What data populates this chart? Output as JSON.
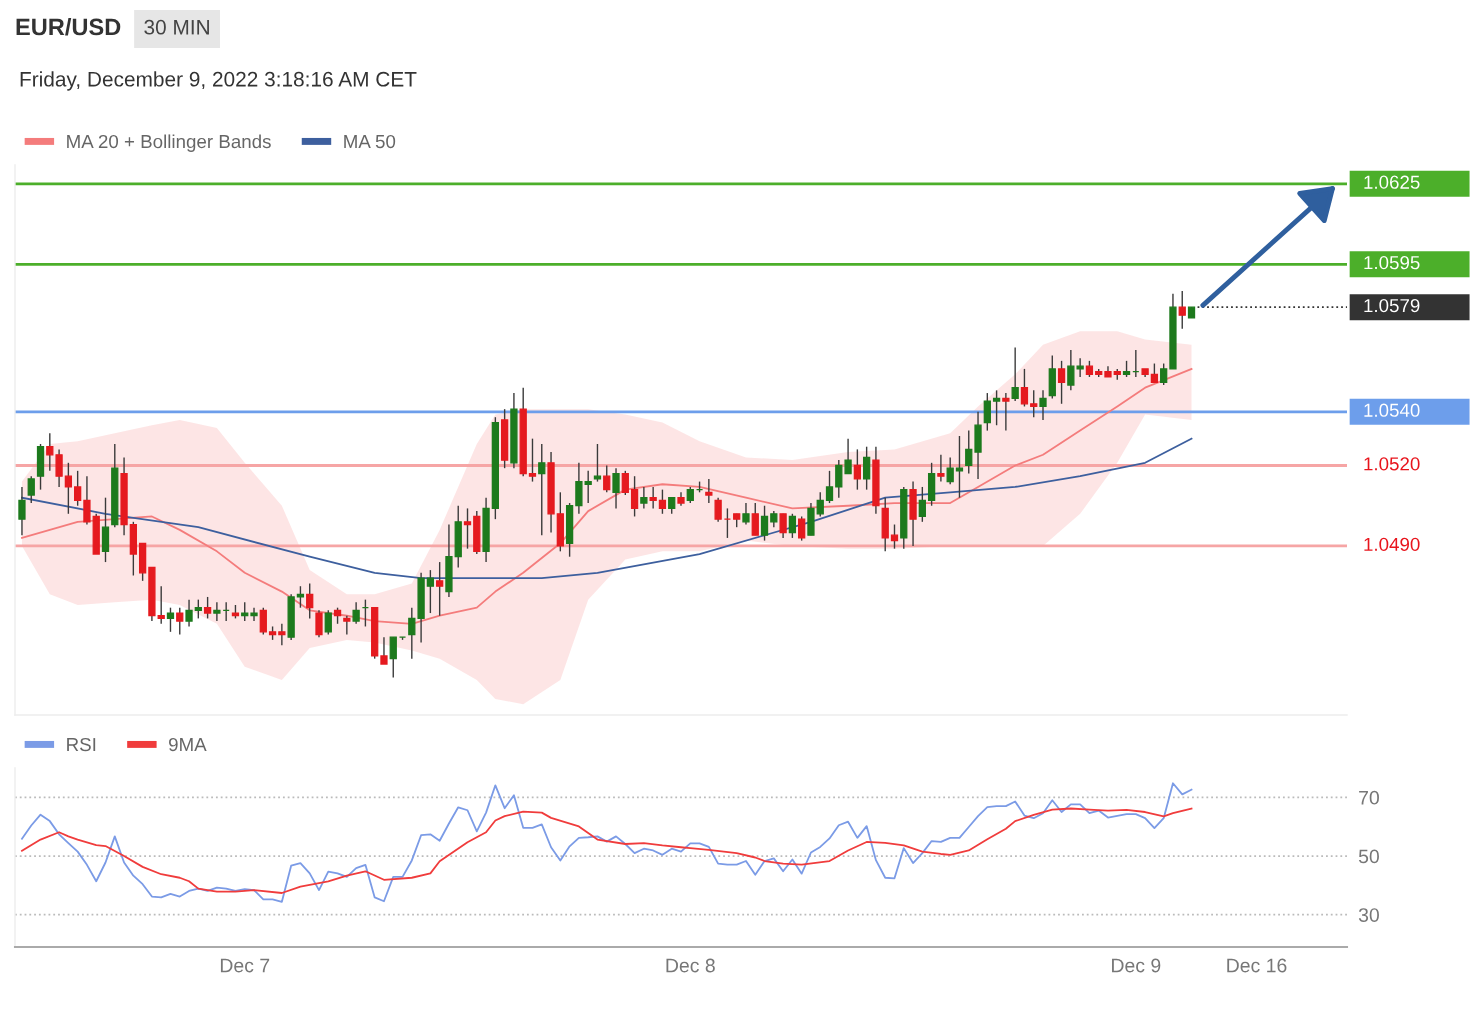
{
  "chart_data": [
    {
      "type": "candlestick",
      "title": "EUR/USD",
      "subtitle": "30 MIN",
      "annotations": [
        "Friday, December 9, 2022 3:18:16 AM CET"
      ],
      "categories": [
        null,
        null,
        null,
        null,
        null,
        null,
        null,
        null,
        null,
        null,
        null,
        null,
        null,
        null,
        null,
        null,
        null,
        null,
        null,
        null,
        null,
        null,
        null,
        null,
        null,
        null,
        null,
        null,
        null,
        null,
        null,
        null,
        null,
        null,
        null,
        null,
        null,
        null,
        null,
        null,
        null,
        null,
        null,
        null,
        null,
        null,
        null,
        null,
        null,
        null,
        null,
        null,
        null,
        null,
        null,
        null,
        null,
        null,
        null,
        null,
        null,
        null,
        null,
        null,
        null,
        null,
        null,
        null,
        null,
        null,
        null,
        null,
        null,
        null,
        null,
        null,
        null,
        null,
        null,
        null,
        null,
        null,
        null,
        null,
        null,
        null,
        null,
        null,
        null,
        null,
        null,
        null,
        null,
        null,
        null,
        null,
        null,
        null,
        null,
        null,
        null,
        null,
        null,
        null,
        null,
        null,
        null,
        null,
        null,
        null,
        null,
        null,
        null,
        null,
        null,
        null,
        null,
        null,
        null,
        null,
        null,
        null,
        null,
        null,
        null,
        null,
        null,
        null,
        null,
        null,
        null,
        null,
        null,
        null,
        null,
        null,
        null,
        null,
        null,
        null,
        null,
        null,
        null
      ],
      "ohlc": [
        [
          1.05,
          1.0512,
          1.0494,
          1.0507
        ],
        [
          1.0509,
          1.0516,
          1.0506,
          1.0515
        ],
        [
          1.0516,
          1.0528,
          1.0511,
          1.0527
        ],
        [
          1.0527,
          1.0532,
          1.0518,
          1.0524
        ],
        [
          1.0524,
          1.0526,
          1.0512,
          1.0516
        ],
        [
          1.0516,
          1.0521,
          1.0502,
          1.0512
        ],
        [
          1.0512,
          1.0518,
          1.0505,
          1.0507
        ],
        [
          1.0507,
          1.0516,
          1.0498,
          1.0499
        ],
        [
          1.0501,
          1.0502,
          1.0487,
          1.0487
        ],
        [
          1.0488,
          1.0508,
          1.0484,
          1.0497
        ],
        [
          1.0498,
          1.0528,
          1.0497,
          1.0519
        ],
        [
          1.0517,
          1.0523,
          1.0494,
          1.0498
        ],
        [
          1.0498,
          1.0499,
          1.0479,
          1.0487
        ],
        [
          1.0491,
          1.0491,
          1.0477,
          1.048
        ],
        [
          1.0482,
          1.0482,
          1.0462,
          1.0464
        ],
        [
          1.0464,
          1.0475,
          1.0461,
          1.0463
        ],
        [
          1.0463,
          1.0467,
          1.0458,
          1.0465
        ],
        [
          1.0465,
          1.0467,
          1.0457,
          1.0462
        ],
        [
          1.0462,
          1.047,
          1.046,
          1.0466
        ],
        [
          1.0466,
          1.047,
          1.0463,
          1.0467
        ],
        [
          1.0467,
          1.0471,
          1.0463,
          1.0465
        ],
        [
          1.0465,
          1.0469,
          1.0462,
          1.0466
        ],
        [
          1.0466,
          1.0469,
          1.0462,
          1.0466
        ],
        [
          1.0465,
          1.0468,
          1.0463,
          1.0464
        ],
        [
          1.0464,
          1.0469,
          1.0462,
          1.0465
        ],
        [
          1.0464,
          1.0467,
          1.0462,
          1.0465
        ],
        [
          1.0466,
          1.0467,
          1.0457,
          1.0458
        ],
        [
          1.0458,
          1.046,
          1.0455,
          1.0457
        ],
        [
          1.0458,
          1.0461,
          1.0453,
          1.0457
        ],
        [
          1.0456,
          1.0472,
          1.0455,
          1.0471
        ],
        [
          1.0471,
          1.0475,
          1.0467,
          1.0472
        ],
        [
          1.0472,
          1.0476,
          1.0463,
          1.0467
        ],
        [
          1.0465,
          1.0466,
          1.0456,
          1.0457
        ],
        [
          1.0458,
          1.0466,
          1.0457,
          1.0465
        ],
        [
          1.0466,
          1.0467,
          1.0461,
          1.0464
        ],
        [
          1.0463,
          1.0464,
          1.0457,
          1.0462
        ],
        [
          1.0462,
          1.0469,
          1.0461,
          1.0466
        ],
        [
          1.0467,
          1.047,
          1.046,
          1.0467
        ],
        [
          1.0467,
          1.0467,
          1.0448,
          1.0449
        ],
        [
          1.0449,
          1.0456,
          1.0446,
          1.0446
        ],
        [
          1.0448,
          1.0456,
          1.0441,
          1.0456
        ],
        [
          1.0456,
          1.0456,
          1.0455,
          1.0456
        ],
        [
          1.0457,
          1.0467,
          1.0448,
          1.0463
        ],
        [
          1.0463,
          1.048,
          1.0454,
          1.0478
        ],
        [
          1.0475,
          1.0481,
          1.0465,
          1.0478
        ],
        [
          1.0477,
          1.0484,
          1.0464,
          1.0475
        ],
        [
          1.0473,
          1.0498,
          1.0471,
          1.0486
        ],
        [
          1.0486,
          1.0505,
          1.0482,
          1.0499
        ],
        [
          1.0499,
          1.0504,
          1.0489,
          1.0498
        ],
        [
          1.0501,
          1.0503,
          1.0487,
          1.0488
        ],
        [
          1.0488,
          1.0508,
          1.0484,
          1.0504
        ],
        [
          1.0504,
          1.0538,
          1.05,
          1.0536
        ],
        [
          1.0537,
          1.0541,
          1.0519,
          1.0522
        ],
        [
          1.0521,
          1.0547,
          1.0519,
          1.0541
        ],
        [
          1.0541,
          1.0549,
          1.0516,
          1.0517
        ],
        [
          1.0517,
          1.053,
          1.0514,
          1.0516
        ],
        [
          1.0517,
          1.0528,
          1.0494,
          1.0521
        ],
        [
          1.0521,
          1.0525,
          1.0495,
          1.0502
        ],
        [
          1.0502,
          1.051,
          1.0488,
          1.049
        ],
        [
          1.0491,
          1.0506,
          1.0486,
          1.0505
        ],
        [
          1.0505,
          1.0521,
          1.0502,
          1.0514
        ],
        [
          1.0513,
          1.0518,
          1.0506,
          1.0514
        ],
        [
          1.0515,
          1.0528,
          1.0514,
          1.0516
        ],
        [
          1.0516,
          1.052,
          1.051,
          1.0511
        ],
        [
          1.051,
          1.0519,
          1.0504,
          1.0517
        ],
        [
          1.0517,
          1.0518,
          1.0509,
          1.051
        ],
        [
          1.0511,
          1.0516,
          1.0501,
          1.0504
        ],
        [
          1.0506,
          1.0512,
          1.0504,
          1.0508
        ],
        [
          1.0508,
          1.0512,
          1.0504,
          1.0507
        ],
        [
          1.0507,
          1.0511,
          1.0502,
          1.0504
        ],
        [
          1.0504,
          1.0508,
          1.0502,
          1.0508
        ],
        [
          1.0508,
          1.051,
          1.0505,
          1.0506
        ],
        [
          1.0507,
          1.0512,
          1.0506,
          1.0511
        ],
        [
          1.0511,
          1.0514,
          1.051,
          1.0511
        ],
        [
          1.051,
          1.0515,
          1.0506,
          1.0509
        ],
        [
          1.0507,
          1.0508,
          1.0499,
          1.05
        ],
        [
          1.05,
          1.0504,
          1.0493,
          1.05
        ],
        [
          1.0502,
          1.0502,
          1.0497,
          1.05
        ],
        [
          1.0499,
          1.0506,
          1.0498,
          1.0502
        ],
        [
          1.0502,
          1.0506,
          1.0494,
          1.0494
        ],
        [
          1.0494,
          1.0505,
          1.0492,
          1.0501
        ],
        [
          1.0499,
          1.0503,
          1.0497,
          1.0502
        ],
        [
          1.0502,
          1.0502,
          1.0493,
          1.0495
        ],
        [
          1.0495,
          1.0502,
          1.0493,
          1.0501
        ],
        [
          1.05,
          1.0501,
          1.0492,
          1.0493
        ],
        [
          1.0494,
          1.0506,
          1.0494,
          1.0504
        ],
        [
          1.0502,
          1.051,
          1.0501,
          1.0507
        ],
        [
          1.0507,
          1.0518,
          1.0506,
          1.0512
        ],
        [
          1.0512,
          1.0522,
          1.0508,
          1.052
        ],
        [
          1.0517,
          1.053,
          1.0517,
          1.0522
        ],
        [
          1.052,
          1.0526,
          1.0511,
          1.0515
        ],
        [
          1.0515,
          1.0527,
          1.0511,
          1.0523
        ],
        [
          1.0522,
          1.0527,
          1.0502,
          1.0505
        ],
        [
          1.0504,
          1.0508,
          1.0488,
          1.0493
        ],
        [
          1.0494,
          1.0498,
          1.0489,
          1.0492
        ],
        [
          1.0493,
          1.0512,
          1.0489,
          1.0511
        ],
        [
          1.0511,
          1.0514,
          1.049,
          1.05
        ],
        [
          1.0501,
          1.0512,
          1.0499,
          1.0507
        ],
        [
          1.0507,
          1.0521,
          1.0505,
          1.0517
        ],
        [
          1.0517,
          1.0524,
          1.0514,
          1.0516
        ],
        [
          1.0514,
          1.0523,
          1.0513,
          1.0519
        ],
        [
          1.0518,
          1.0531,
          1.0508,
          1.0519
        ],
        [
          1.052,
          1.0533,
          1.0517,
          1.0526
        ],
        [
          1.0525,
          1.054,
          1.0515,
          1.0535
        ],
        [
          1.0536,
          1.0547,
          1.0533,
          1.0544
        ],
        [
          1.0544,
          1.0548,
          1.0535,
          1.0545
        ],
        [
          1.0545,
          1.0547,
          1.0533,
          1.0544
        ],
        [
          1.0545,
          1.0564,
          1.0544,
          1.0549
        ],
        [
          1.0549,
          1.0556,
          1.0542,
          1.0543
        ],
        [
          1.0543,
          1.0548,
          1.0538,
          1.0542
        ],
        [
          1.0542,
          1.0548,
          1.0537,
          1.0545
        ],
        [
          1.0546,
          1.0561,
          1.0545,
          1.0556
        ],
        [
          1.0556,
          1.0559,
          1.0543,
          1.0551
        ],
        [
          1.055,
          1.0563,
          1.0548,
          1.0557
        ],
        [
          1.0556,
          1.056,
          1.0553,
          1.0557
        ],
        [
          1.0557,
          1.0559,
          1.0553,
          1.0554
        ],
        [
          1.0555,
          1.0556,
          1.0553,
          1.0554
        ],
        [
          1.0555,
          1.0557,
          1.0553,
          1.0553
        ],
        [
          1.0555,
          1.0556,
          1.0552,
          1.0554
        ],
        [
          1.0554,
          1.0559,
          1.0553,
          1.0555
        ],
        [
          1.0555,
          1.0563,
          1.0553,
          1.0555
        ],
        [
          1.0556,
          1.0556,
          1.0553,
          1.0554
        ],
        [
          1.0554,
          1.0558,
          1.0551,
          1.0551
        ],
        [
          1.0551,
          1.0558,
          1.055,
          1.0556
        ],
        [
          1.0556,
          1.0584,
          1.0556,
          1.0579
        ],
        [
          1.0579,
          1.0585,
          1.0571,
          1.0576
        ],
        [
          1.0575,
          1.0579,
          1.0575,
          1.0579
        ],
        null,
        null,
        null,
        null,
        null,
        null,
        null,
        null,
        null,
        null,
        null,
        null,
        null,
        null,
        null,
        null
      ],
      "colors": [
        "#1d7a1d",
        "#1d7a1d",
        "#1d7a1d",
        "#e51a1f",
        "#e51a1f",
        "#e51a1f",
        "#e51a1f",
        "#e51a1f",
        "#e51a1f",
        "#1d7a1d",
        "#1d7a1d",
        "#e51a1f",
        "#e51a1f",
        "#e51a1f",
        "#e51a1f",
        "#e51a1f",
        "#1d7a1d",
        "#e51a1f",
        "#1d7a1d",
        "#1d7a1d",
        "#e51a1f",
        "#1d7a1d",
        "#1d7a1d",
        "#e51a1f",
        "#1d7a1d",
        "#1d7a1d",
        "#e51a1f",
        "#e51a1f",
        "#e51a1f",
        "#1d7a1d",
        "#1d7a1d",
        "#e51a1f",
        "#e51a1f",
        "#1d7a1d",
        "#e51a1f",
        "#e51a1f",
        "#1d7a1d",
        "#1d7a1d",
        "#e51a1f",
        "#e51a1f",
        "#1d7a1d",
        "#1d7a1d",
        "#1d7a1d",
        "#1d7a1d",
        "#1d7a1d",
        "#e51a1f",
        "#1d7a1d",
        "#1d7a1d",
        "#e51a1f",
        "#e51a1f",
        "#1d7a1d",
        "#1d7a1d",
        "#e51a1f",
        "#1d7a1d",
        "#e51a1f",
        "#e51a1f",
        "#1d7a1d",
        "#e51a1f",
        "#e51a1f",
        "#1d7a1d",
        "#1d7a1d",
        "#1d7a1d",
        "#1d7a1d",
        "#e51a1f",
        "#1d7a1d",
        "#e51a1f",
        "#e51a1f",
        "#1d7a1d",
        "#e51a1f",
        "#e51a1f",
        "#1d7a1d",
        "#e51a1f",
        "#1d7a1d",
        "#1d7a1d",
        "#e51a1f",
        "#e51a1f",
        "#e51a1f",
        "#e51a1f",
        "#1d7a1d",
        "#e51a1f",
        "#1d7a1d",
        "#1d7a1d",
        "#e51a1f",
        "#1d7a1d",
        "#e51a1f",
        "#1d7a1d",
        "#1d7a1d",
        "#1d7a1d",
        "#1d7a1d",
        "#1d7a1d",
        "#e51a1f",
        "#1d7a1d",
        "#e51a1f",
        "#e51a1f",
        "#e51a1f",
        "#1d7a1d",
        "#e51a1f",
        "#1d7a1d",
        "#1d7a1d",
        "#e51a1f",
        "#1d7a1d",
        "#1d7a1d",
        "#1d7a1d",
        "#1d7a1d",
        "#1d7a1d",
        "#1d7a1d",
        "#e51a1f",
        "#1d7a1d",
        "#e51a1f",
        "#e51a1f",
        "#1d7a1d",
        "#1d7a1d",
        "#e51a1f",
        "#1d7a1d",
        "#1d7a1d",
        "#e51a1f",
        "#e51a1f",
        "#e51a1f",
        "#e51a1f",
        "#1d7a1d",
        "#1d7a1d",
        "#e51a1f",
        "#e51a1f",
        "#1d7a1d",
        "#1d7a1d",
        "#e51a1f",
        "#1d7a1d",
        null,
        null,
        null,
        null,
        null,
        null,
        null,
        null,
        null,
        null,
        null,
        null,
        null,
        null,
        null,
        null
      ],
      "series": [
        {
          "name": "MA 20 + Bollinger Bands",
          "type": "line",
          "color": "#f47c7c",
          "values": [
            1.0493,
            null,
            null,
            1.0496,
            null,
            null,
            1.0499,
            null,
            null,
            null,
            1.05,
            null,
            null,
            null,
            1.0501,
            null,
            null,
            1.0496,
            null,
            null,
            null,
            1.0488,
            null,
            null,
            1.048,
            null,
            null,
            null,
            1.0473,
            null,
            null,
            1.0466,
            null,
            null,
            null,
            1.0464,
            null,
            null,
            1.0462,
            null,
            null,
            null,
            1.0461,
            null,
            null,
            1.0464,
            null,
            null,
            null,
            1.0467,
            null,
            1.0473,
            null,
            null,
            1.048,
            null,
            null,
            null,
            1.0491,
            null,
            null,
            1.0503,
            null,
            null,
            null,
            1.0511,
            null,
            null,
            null,
            1.0513,
            null,
            null,
            null,
            1.0512,
            null,
            null,
            null,
            null,
            1.0508,
            null,
            null,
            null,
            null,
            1.0504,
            null,
            null,
            null,
            null,
            null,
            1.0505,
            null,
            null,
            null,
            null,
            1.0506,
            null,
            null,
            null,
            null,
            null,
            1.0506,
            null,
            null,
            1.0512,
            null,
            null,
            null,
            1.052,
            null,
            null,
            1.0524,
            null,
            null,
            null,
            1.0533,
            null,
            null,
            null,
            1.0542,
            null,
            null,
            1.0549,
            null,
            null,
            null,
            null,
            1.0556,
            null,
            null,
            null,
            null,
            null,
            null,
            null,
            null,
            null,
            null,
            null,
            null,
            null,
            null,
            null,
            null
          ],
          "upper": [
            1.0514,
            null,
            null,
            1.0528,
            null,
            null,
            1.0529,
            null,
            null,
            null,
            1.0532,
            null,
            null,
            null,
            1.0535,
            null,
            null,
            1.0537,
            null,
            null,
            null,
            1.0534,
            null,
            null,
            1.0521,
            null,
            null,
            null,
            1.0505,
            null,
            null,
            1.0481,
            null,
            null,
            null,
            1.0472,
            null,
            null,
            1.0472,
            null,
            null,
            null,
            1.0476,
            null,
            null,
            1.0496,
            null,
            null,
            null,
            1.0528,
            null,
            1.0539,
            null,
            null,
            1.0541,
            null,
            null,
            null,
            1.0541,
            null,
            null,
            1.0541,
            null,
            null,
            null,
            1.0539,
            null,
            null,
            null,
            1.0536,
            null,
            null,
            null,
            1.0529,
            null,
            null,
            null,
            null,
            1.0523,
            null,
            null,
            null,
            null,
            1.0522,
            null,
            null,
            null,
            null,
            null,
            1.0525,
            null,
            null,
            null,
            null,
            1.0526,
            null,
            null,
            null,
            null,
            null,
            1.0532,
            null,
            null,
            1.0542,
            null,
            null,
            null,
            1.0554,
            null,
            null,
            1.0565,
            null,
            null,
            null,
            1.057,
            null,
            null,
            null,
            1.057,
            null,
            null,
            1.0567,
            null,
            null,
            null,
            null,
            1.0565,
            null,
            null,
            null,
            null,
            null,
            null,
            null,
            null,
            null,
            null,
            null,
            null,
            null,
            null,
            null,
            null
          ],
          "lower": [
            1.049,
            null,
            null,
            1.0472,
            null,
            null,
            1.0468,
            null,
            null,
            null,
            1.0469,
            null,
            null,
            null,
            1.047,
            null,
            null,
            1.0468,
            null,
            null,
            null,
            1.0461,
            null,
            null,
            1.0445,
            null,
            null,
            null,
            1.044,
            null,
            null,
            1.0452,
            null,
            null,
            null,
            1.0455,
            null,
            null,
            1.0454,
            null,
            null,
            null,
            1.0451,
            null,
            null,
            1.0448,
            null,
            null,
            null,
            1.044,
            null,
            1.0433,
            null,
            null,
            1.0431,
            null,
            null,
            null,
            1.044,
            null,
            null,
            1.047,
            null,
            null,
            null,
            1.0485,
            null,
            null,
            null,
            1.0488,
            null,
            null,
            null,
            1.0488,
            null,
            null,
            null,
            null,
            1.0492,
            null,
            null,
            null,
            null,
            1.049,
            null,
            null,
            null,
            null,
            null,
            1.0489,
            null,
            null,
            null,
            null,
            1.0489,
            null,
            null,
            null,
            null,
            null,
            1.049,
            null,
            null,
            1.049,
            null,
            null,
            null,
            1.049,
            null,
            null,
            1.049,
            null,
            null,
            null,
            1.0502,
            null,
            null,
            null,
            1.0521,
            null,
            null,
            1.0539,
            null,
            null,
            null,
            null,
            1.0537,
            null,
            null,
            null,
            null,
            null,
            null,
            null,
            null,
            null,
            null,
            null,
            null,
            null,
            null,
            null,
            null
          ]
        },
        {
          "name": "MA 50",
          "type": "line",
          "color": "#3d5f9e",
          "values": [
            1.0508,
            null,
            null,
            null,
            null,
            null,
            null,
            null,
            null,
            1.0502,
            null,
            null,
            null,
            null,
            null,
            null,
            null,
            null,
            null,
            1.0497,
            null,
            null,
            null,
            null,
            null,
            null,
            null,
            null,
            null,
            null,
            null,
            1.0486,
            null,
            null,
            null,
            null,
            null,
            null,
            1.048,
            null,
            null,
            null,
            null,
            1.0478,
            null,
            null,
            null,
            null,
            null,
            1.0478,
            null,
            null,
            null,
            null,
            null,
            null,
            1.0478,
            null,
            null,
            null,
            null,
            null,
            1.048,
            null,
            null,
            null,
            null,
            null,
            null,
            null,
            null,
            null,
            null,
            1.0487,
            null,
            null,
            null,
            null,
            null,
            null,
            1.0494,
            null,
            null,
            null,
            null,
            1.0499,
            null,
            null,
            null,
            null,
            null,
            null,
            null,
            1.0508,
            null,
            null,
            null,
            null,
            null,
            null,
            1.051,
            null,
            null,
            null,
            null,
            null,
            null,
            1.0512,
            null,
            null,
            null,
            null,
            null,
            null,
            1.0516,
            null,
            null,
            null,
            null,
            null,
            null,
            1.0521,
            null,
            null,
            null,
            null,
            1.053,
            null,
            null,
            null,
            null,
            null,
            null,
            null,
            null,
            null,
            null,
            null,
            null,
            null,
            null,
            null,
            null
          ]
        }
      ],
      "ref_lines": [
        {
          "axis": "y",
          "value": 1.0625,
          "label": "1.0625",
          "color": "#4caf2a",
          "line_style": "solid"
        },
        {
          "axis": "y",
          "value": 1.0595,
          "label": "1.0595",
          "color": "#4caf2a",
          "line_style": "solid"
        },
        {
          "axis": "y",
          "value": 1.0579,
          "label": "1.0579",
          "color": "#333333",
          "line_style": "dotted"
        },
        {
          "axis": "y",
          "value": 1.054,
          "label": "1.0540",
          "color": "#6d9eeb",
          "line_style": "solid"
        },
        {
          "axis": "y",
          "value": 1.052,
          "label": "1.0520",
          "color": "#f6a5a5",
          "line_style": "solid"
        },
        {
          "axis": "y",
          "value": 1.049,
          "label": "1.0490",
          "color": "#f6a5a5",
          "line_style": "solid"
        }
      ],
      "ylim": [
        1.0427,
        1.0632
      ],
      "legend": "top left"
    },
    {
      "type": "line",
      "categories": [
        null,
        null,
        null,
        null,
        null,
        null,
        null,
        null,
        null,
        null,
        null,
        null,
        null,
        null,
        null,
        null,
        null,
        null,
        null,
        null,
        null,
        null,
        null,
        null,
        "Dec 7",
        null,
        null,
        null,
        null,
        null,
        null,
        null,
        null,
        null,
        null,
        null,
        null,
        null,
        null,
        null,
        null,
        null,
        null,
        null,
        null,
        null,
        null,
        null,
        null,
        null,
        null,
        null,
        null,
        null,
        null,
        null,
        null,
        null,
        null,
        null,
        null,
        null,
        null,
        null,
        null,
        null,
        null,
        null,
        null,
        null,
        null,
        null,
        "Dec 8",
        null,
        null,
        null,
        null,
        null,
        null,
        null,
        null,
        null,
        null,
        null,
        null,
        null,
        null,
        null,
        null,
        null,
        null,
        null,
        null,
        null,
        null,
        null,
        null,
        null,
        null,
        null,
        null,
        null,
        null,
        null,
        null,
        null,
        null,
        null,
        null,
        null,
        null,
        null,
        null,
        null,
        null,
        null,
        null,
        null,
        null,
        null,
        "Dec 9",
        null,
        null,
        null,
        null,
        null,
        null,
        null,
        null,
        null,
        null,
        null,
        null,
        "Dec 16",
        null,
        null,
        null,
        null,
        null,
        null,
        null,
        null,
        null
      ],
      "series": [
        {
          "name": "RSI",
          "color": "#7b9be6",
          "values": [
            55.9,
            60.4,
            64.1,
            61.9,
            57.4,
            54.4,
            51.5,
            47.0,
            41.4,
            47.8,
            56.7,
            47.8,
            43.3,
            40.4,
            36.2,
            35.9,
            37.1,
            36.2,
            38.1,
            38.9,
            38.1,
            39.2,
            38.9,
            38.1,
            38.7,
            38.4,
            35.2,
            35.2,
            34.4,
            46.7,
            47.6,
            44.1,
            38.4,
            44.7,
            44.1,
            42.9,
            45.9,
            47.0,
            35.9,
            34.6,
            42.9,
            42.9,
            48.5,
            57.1,
            57.4,
            55.2,
            61.1,
            66.6,
            65.6,
            58.4,
            64.8,
            74.1,
            66.3,
            70.7,
            59.6,
            59.6,
            60.8,
            53.0,
            48.5,
            53.3,
            56.2,
            56.4,
            56.7,
            54.9,
            56.7,
            54.1,
            51.0,
            52.5,
            51.9,
            50.4,
            52.5,
            51.5,
            54.3,
            54.3,
            53.1,
            47.4,
            47.1,
            47.1,
            48.3,
            43.6,
            48.3,
            49.2,
            44.8,
            48.8,
            44.0,
            51.2,
            53.1,
            56.0,
            60.5,
            61.7,
            56.2,
            60.2,
            48.6,
            42.6,
            42.4,
            52.7,
            47.6,
            51.0,
            55.1,
            54.8,
            56.2,
            56.2,
            59.9,
            63.6,
            66.7,
            67.0,
            67.0,
            68.6,
            63.8,
            62.9,
            64.6,
            69.0,
            65.0,
            67.6,
            67.6,
            64.6,
            65.5,
            63.1,
            63.7,
            64.3,
            64.3,
            62.9,
            59.5,
            62.9,
            74.8,
            71.0,
            72.6,
            null,
            null,
            null,
            null,
            null,
            null,
            null,
            null,
            null,
            null,
            null,
            null,
            null,
            null,
            null,
            null
          ]
        },
        {
          "name": "9MA",
          "color": "#f03c3c",
          "values": [
            51.8,
            null,
            55.6,
            null,
            58.1,
            56.7,
            55.6,
            null,
            53.7,
            53.4,
            null,
            50.0,
            null,
            46.3,
            null,
            43.8,
            null,
            42.6,
            41.4,
            38.9,
            null,
            37.9,
            null,
            37.9,
            null,
            38.4,
            null,
            null,
            37.4,
            null,
            39.6,
            null,
            null,
            41.4,
            null,
            43.3,
            null,
            44.8,
            null,
            41.9,
            null,
            null,
            42.6,
            null,
            44.1,
            48.2,
            null,
            null,
            54.7,
            null,
            58.1,
            62.1,
            63.6,
            null,
            65.1,
            null,
            64.8,
            63.0,
            null,
            null,
            60.1,
            null,
            55.6,
            null,
            null,
            54.1,
            null,
            54.4,
            null,
            53.6,
            null,
            53.0,
            52.7,
            null,
            52.1,
            null,
            null,
            51.0,
            null,
            49.5,
            48.3,
            null,
            47.4,
            null,
            47.1,
            null,
            null,
            48.3,
            null,
            51.9,
            null,
            54.8,
            null,
            54.5,
            null,
            53.6,
            null,
            51.5,
            null,
            50.7,
            50.4,
            null,
            51.9,
            null,
            55.7,
            null,
            59.3,
            61.9,
            null,
            64.0,
            null,
            65.8,
            null,
            66.2,
            null,
            65.8,
            null,
            65.5,
            null,
            65.7,
            null,
            65.0,
            null,
            63.5,
            64.6,
            null,
            66.2,
            null,
            null,
            null,
            null,
            null,
            null,
            null,
            null,
            null,
            null,
            null,
            null,
            null,
            null,
            null,
            null
          ]
        }
      ],
      "ylim": [
        19,
        80
      ],
      "yticks": [
        30,
        50,
        70
      ],
      "grid": "y",
      "legend": "top left"
    }
  ]
}
